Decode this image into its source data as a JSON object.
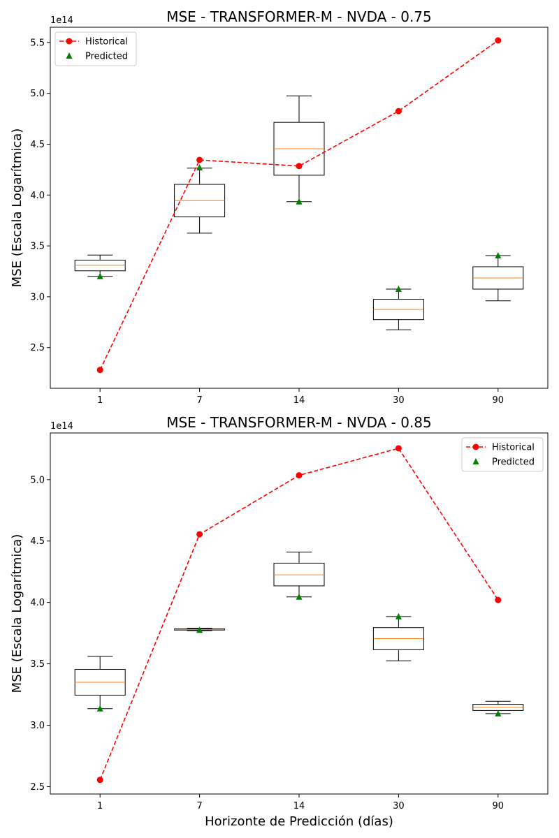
{
  "chart_data": [
    {
      "type": "box",
      "title": "MSE - TRANSFORMER-M - NVDA - 0.75",
      "xlabel": "",
      "ylabel": "MSE (Escala Logarítmica)",
      "y_multiplier_label": "1e14",
      "categories": [
        "1",
        "7",
        "14",
        "30",
        "90"
      ],
      "ylim": [
        2.1,
        5.65
      ],
      "yticks": [
        2.5,
        3.0,
        3.5,
        4.0,
        4.5,
        5.0,
        5.5
      ],
      "ytick_labels": [
        "2.5",
        "3.0",
        "3.5",
        "4.0",
        "4.5",
        "5.0",
        "5.5"
      ],
      "boxes": [
        {
          "whislo": 3.2,
          "q1": 3.255,
          "med": 3.31,
          "q3": 3.36,
          "whishi": 3.41
        },
        {
          "whislo": 3.625,
          "q1": 3.785,
          "med": 3.945,
          "q3": 4.105,
          "whishi": 4.265
        },
        {
          "whislo": 3.935,
          "q1": 4.195,
          "med": 4.455,
          "q3": 4.715,
          "whishi": 4.975
        },
        {
          "whislo": 2.675,
          "q1": 2.775,
          "med": 2.875,
          "q3": 2.975,
          "whishi": 3.075
        },
        {
          "whislo": 2.96,
          "q1": 3.075,
          "med": 3.185,
          "q3": 3.295,
          "whishi": 3.405
        }
      ],
      "series": [
        {
          "name": "Historical",
          "values": [
            2.28,
            4.345,
            4.285,
            4.825,
            5.52
          ],
          "color": "#ff0000",
          "style": "dashed-line-circle"
        },
        {
          "name": "Predicted",
          "values": [
            3.2,
            4.27,
            3.935,
            3.075,
            3.405
          ],
          "color": "#008000",
          "style": "triangle"
        }
      ],
      "legend": "top-left",
      "grid": false
    },
    {
      "type": "box",
      "title": "MSE - TRANSFORMER-M - NVDA - 0.85",
      "xlabel": "Horizonte de Predicción (días)",
      "ylabel": "MSE (Escala Logarítmica)",
      "y_multiplier_label": "1e14",
      "categories": [
        "1",
        "7",
        "14",
        "30",
        "90"
      ],
      "ylim": [
        2.44,
        5.38
      ],
      "yticks": [
        2.5,
        3.0,
        3.5,
        4.0,
        4.5,
        5.0
      ],
      "ytick_labels": [
        "2.5",
        "3.0",
        "3.5",
        "4.0",
        "4.5",
        "5.0"
      ],
      "boxes": [
        {
          "whislo": 3.135,
          "q1": 3.245,
          "med": 3.35,
          "q3": 3.455,
          "whishi": 3.56
        },
        {
          "whislo": 3.77,
          "q1": 3.775,
          "med": 3.78,
          "q3": 3.785,
          "whishi": 3.79
        },
        {
          "whislo": 4.045,
          "q1": 4.135,
          "med": 4.225,
          "q3": 4.32,
          "whishi": 4.41
        },
        {
          "whislo": 3.525,
          "q1": 3.615,
          "med": 3.705,
          "q3": 3.795,
          "whishi": 3.885
        },
        {
          "whislo": 3.095,
          "q1": 3.12,
          "med": 3.145,
          "q3": 3.17,
          "whishi": 3.195
        }
      ],
      "series": [
        {
          "name": "Historical",
          "values": [
            2.555,
            4.555,
            5.035,
            5.255,
            4.02
          ],
          "color": "#ff0000",
          "style": "dashed-line-circle"
        },
        {
          "name": "Predicted",
          "values": [
            3.135,
            3.775,
            4.045,
            3.885,
            3.095
          ],
          "color": "#008000",
          "style": "triangle"
        }
      ],
      "legend": "top-right",
      "grid": false
    }
  ]
}
